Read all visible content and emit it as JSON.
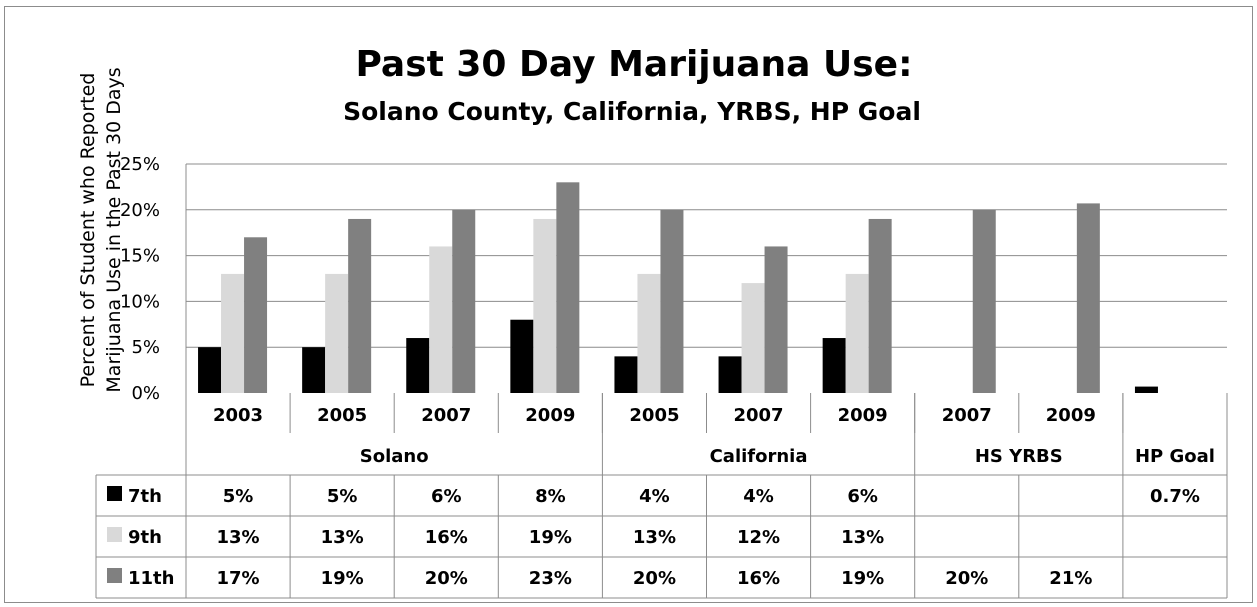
{
  "chart_data": {
    "type": "bar",
    "title": "Past 30 Day Marijuana Use:",
    "subtitle": "Solano County, California, YRBS, HP Goal",
    "ylabel_lines": [
      "Percent of Student who Reported",
      "Marijuana Use in the Past 30 Days"
    ],
    "yticks": [
      "0%",
      "5%",
      "10%",
      "15%",
      "20%",
      "25%"
    ],
    "ylim": [
      0,
      25
    ],
    "grid": true,
    "categories": [
      "2003",
      "2005",
      "2007",
      "2009",
      "2005",
      "2007",
      "2009",
      "2007",
      "2009",
      ""
    ],
    "groups": [
      {
        "label": "Solano",
        "span": 4
      },
      {
        "label": "California",
        "span": 3
      },
      {
        "label": "HS YRBS",
        "span": 2
      },
      {
        "label": "HP Goal",
        "span": 1
      }
    ],
    "series": [
      {
        "name": "7th",
        "color": "#000000",
        "values": [
          5,
          5,
          6,
          8,
          4,
          4,
          6,
          null,
          null,
          0.7
        ],
        "labels": [
          "5%",
          "5%",
          "6%",
          "8%",
          "4%",
          "4%",
          "6%",
          "",
          "",
          "0.7%"
        ]
      },
      {
        "name": "9th",
        "color": "#d9d9d9",
        "values": [
          13,
          13,
          16,
          19,
          13,
          12,
          13,
          null,
          null,
          null
        ],
        "labels": [
          "13%",
          "13%",
          "16%",
          "19%",
          "13%",
          "12%",
          "13%",
          "",
          "",
          ""
        ]
      },
      {
        "name": "11th",
        "color": "#808080",
        "values": [
          17,
          19,
          20,
          23,
          20,
          16,
          19,
          20,
          20.7,
          null
        ],
        "labels": [
          "17%",
          "19%",
          "20%",
          "23%",
          "20%",
          "16%",
          "19%",
          "20%",
          "21%",
          ""
        ]
      }
    ]
  }
}
